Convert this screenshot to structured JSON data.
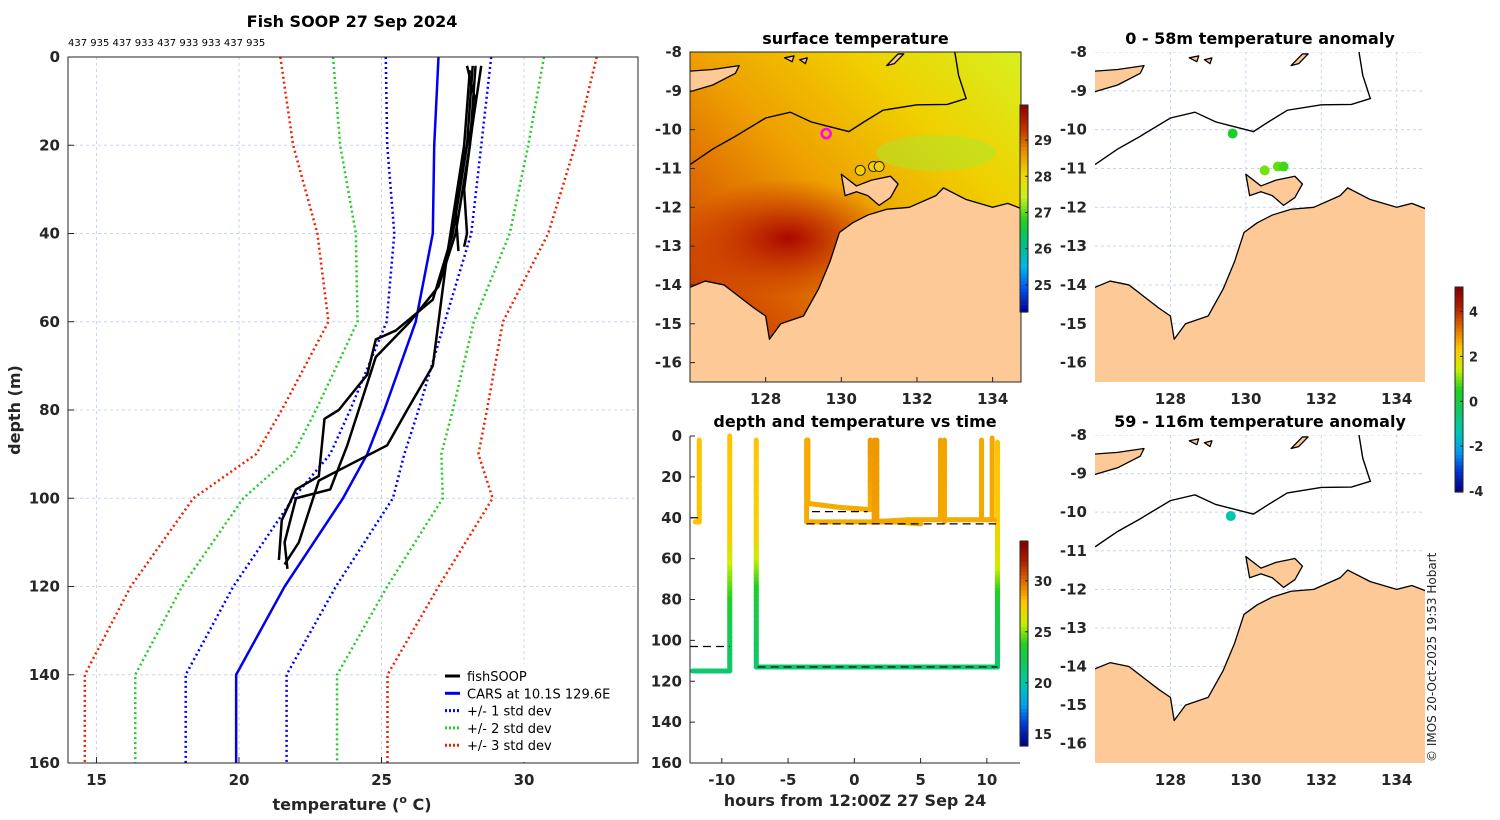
{
  "credit": "© IMOS 20-Oct-2025 19:53 Hobart",
  "chart_data": [
    {
      "type": "line",
      "title": "Fish SOOP 27 Sep 2024",
      "subtitle": "437 935 437 933 437 933 933 437 935",
      "xlabel_prefix": "temperature (",
      "xlabel_sup": "o",
      "xlabel_suffix": " C)",
      "ylabel": "depth (m)",
      "xlim": [
        14,
        34
      ],
      "ylim": [
        160,
        0
      ],
      "xticks": [
        "15",
        "20",
        "25",
        "30"
      ],
      "yticks": [
        "0",
        "20",
        "40",
        "60",
        "80",
        "100",
        "120",
        "140",
        "160"
      ],
      "grid": true,
      "legend_position": "bottom-right",
      "legend": [
        {
          "label": "fishSOOP",
          "color": "#000000",
          "style": "solid"
        },
        {
          "label": "CARS at 10.1S 129.6E",
          "color": "#0000ee",
          "style": "solid"
        },
        {
          "label": "+/- 1 std dev",
          "color": "#0000ff",
          "style": "dotted"
        },
        {
          "label": "+/- 2 std dev",
          "color": "#22cc22",
          "style": "dotted"
        },
        {
          "label": "+/- 3 std dev",
          "color": "#ee2200",
          "style": "dotted"
        }
      ],
      "cars": {
        "depth": [
          0,
          20,
          40,
          60,
          80,
          90,
          100,
          120,
          140,
          160
        ],
        "mean": [
          27.0,
          26.85,
          26.8,
          26.2,
          25.1,
          24.5,
          23.65,
          21.6,
          19.9,
          19.9
        ],
        "sd": [
          1.85,
          1.65,
          1.35,
          1.02,
          1.2,
          1.3,
          1.75,
          1.8,
          1.77,
          1.77
        ]
      },
      "fishsoop_profiles": [
        [
          [
            28.0,
            2
          ],
          [
            28.3,
            10
          ],
          [
            28.1,
            20
          ],
          [
            27.9,
            30
          ],
          [
            28.0,
            40
          ],
          [
            27.9,
            43
          ]
        ],
        [
          [
            28.5,
            2
          ],
          [
            28.2,
            15
          ],
          [
            27.8,
            25
          ],
          [
            27.6,
            35
          ],
          [
            27.7,
            44
          ]
        ],
        [
          [
            28.2,
            2
          ],
          [
            28.0,
            20
          ],
          [
            27.5,
            40
          ],
          [
            26.8,
            55
          ],
          [
            25.5,
            62
          ],
          [
            24.8,
            64
          ],
          [
            24.5,
            72
          ],
          [
            23.5,
            80
          ],
          [
            23.0,
            82
          ],
          [
            22.8,
            95
          ],
          [
            22.0,
            98
          ],
          [
            21.5,
            105
          ],
          [
            21.4,
            114
          ]
        ],
        [
          [
            28.3,
            2
          ],
          [
            28.1,
            20
          ],
          [
            27.6,
            40
          ],
          [
            27.0,
            52
          ],
          [
            26.0,
            60
          ],
          [
            24.8,
            68
          ],
          [
            24.3,
            78
          ],
          [
            23.8,
            88
          ],
          [
            23.2,
            98
          ],
          [
            22.0,
            100
          ],
          [
            21.6,
            110
          ],
          [
            21.7,
            116
          ]
        ],
        [
          [
            28.1,
            3
          ],
          [
            27.9,
            20
          ],
          [
            27.3,
            45
          ],
          [
            26.8,
            70
          ],
          [
            25.9,
            80
          ],
          [
            25.2,
            88
          ],
          [
            24.0,
            92
          ],
          [
            22.8,
            96
          ],
          [
            22.1,
            110
          ],
          [
            21.6,
            115
          ]
        ]
      ]
    },
    {
      "type": "heatmap",
      "title": "surface temperature",
      "xlim": [
        126.0,
        134.75
      ],
      "ylim": [
        -16.5,
        -8
      ],
      "xticks": [
        "128",
        "130",
        "132",
        "134"
      ],
      "yticks": [
        "-8",
        "-9",
        "-10",
        "-11",
        "-12",
        "-13",
        "-14",
        "-15",
        "-16"
      ],
      "ocean_colors": [
        "#b81800",
        "#d85a00",
        "#eea000",
        "#f0d000",
        "#d8f020"
      ],
      "colorbar": {
        "range": [
          24.25,
          29.97
        ],
        "ticks": [
          "25",
          "26",
          "27",
          "28",
          "29"
        ],
        "colors": [
          "#00008f",
          "#0050f0",
          "#00b8e8",
          "#00c080",
          "#20d020",
          "#c8f020",
          "#f0d800",
          "#e89000",
          "#c03000",
          "#900000"
        ]
      },
      "points": [
        {
          "lon": 129.6,
          "lat": -10.1,
          "color": "#ff00ff",
          "style": "ring"
        },
        {
          "lon": 130.5,
          "lat": -11.05,
          "color": "#f8d000",
          "style": "circle"
        },
        {
          "lon": 130.85,
          "lat": -10.95,
          "color": "#f8d000",
          "style": "circle"
        },
        {
          "lon": 131.0,
          "lat": -10.95,
          "color": "#f8d000",
          "style": "circle"
        }
      ]
    },
    {
      "type": "scatter",
      "title": "depth and temperature vs time",
      "xlabel": "hours from 12:00Z 27 Sep 24",
      "xlim": [
        -12.4,
        12.5
      ],
      "ylim": [
        160,
        0
      ],
      "xticks": [
        "-10",
        "-5",
        "0",
        "5",
        "10"
      ],
      "yticks": [
        "0",
        "20",
        "40",
        "60",
        "80",
        "100",
        "120",
        "140",
        "160"
      ],
      "colorbar": {
        "range": [
          13.8,
          33.9
        ],
        "ticks": [
          "15",
          "20",
          "25",
          "30"
        ],
        "colors": [
          "#00007f",
          "#0030d0",
          "#00a0f0",
          "#00c8b0",
          "#10c860",
          "#20d020",
          "#c8f000",
          "#ffc800",
          "#e07000",
          "#b02000",
          "#800000"
        ]
      },
      "tracks": [
        [
          [
            -12.0,
            42,
            28
          ],
          [
            -11.7,
            42,
            28
          ],
          [
            -11.7,
            2,
            28
          ]
        ],
        [
          [
            -12.2,
            115,
            21.5
          ],
          [
            -9.4,
            115,
            21.5
          ],
          [
            -9.4,
            90,
            22.5
          ],
          [
            -9.4,
            60,
            26
          ],
          [
            -9.4,
            50,
            27.5
          ],
          [
            -9.4,
            0,
            28
          ]
        ],
        [
          [
            -7.4,
            2,
            28
          ],
          [
            -7.4,
            50,
            27.5
          ],
          [
            -7.4,
            60,
            26
          ],
          [
            -7.4,
            80,
            23
          ],
          [
            -7.4,
            113,
            21.5
          ],
          [
            10.8,
            113,
            21.5
          ],
          [
            10.8,
            80,
            23
          ],
          [
            10.8,
            60,
            26.5
          ],
          [
            10.8,
            45,
            27.5
          ],
          [
            10.8,
            3,
            28
          ]
        ],
        [
          [
            -3.6,
            2,
            28.5
          ],
          [
            -3.6,
            42,
            28.5
          ],
          [
            1.3,
            42,
            28.5
          ],
          [
            4,
            41,
            28.5
          ],
          [
            10.6,
            41,
            28.5
          ]
        ],
        [
          [
            -3.5,
            2,
            28.5
          ],
          [
            -3.5,
            33,
            28.5
          ],
          [
            -1,
            35,
            28.5
          ],
          [
            1.2,
            36,
            28.5
          ],
          [
            1.2,
            2,
            29
          ]
        ],
        [
          [
            1.5,
            2,
            29
          ],
          [
            1.5,
            42,
            28.8
          ]
        ],
        [
          [
            1.7,
            2,
            29
          ],
          [
            1.7,
            42,
            28.8
          ],
          [
            3,
            42,
            28.6
          ],
          [
            5,
            43,
            28.5
          ]
        ],
        [
          [
            6.5,
            2,
            28.7
          ],
          [
            6.5,
            40,
            28.6
          ]
        ],
        [
          [
            6.8,
            2,
            28.7
          ],
          [
            6.8,
            42,
            28.6
          ]
        ],
        [
          [
            9.6,
            2,
            28.6
          ],
          [
            9.6,
            41,
            28.6
          ]
        ],
        [
          [
            10.4,
            1,
            28.6
          ],
          [
            10.4,
            41,
            28.6
          ]
        ]
      ],
      "bottom_depth_dashes": [
        [
          -12.4,
          -11.8,
          40
        ],
        [
          -12.4,
          -9.4,
          103
        ],
        [
          -7.3,
          10.8,
          113
        ],
        [
          -3.2,
          1.0,
          37
        ],
        [
          -3.6,
          10.7,
          43
        ]
      ]
    },
    {
      "type": "heatmap",
      "title": "0 - 58m temperature anomaly",
      "xlim": [
        126.0,
        134.75
      ],
      "ylim": [
        -16.5,
        -8
      ],
      "xticks": [
        "128",
        "130",
        "132",
        "134"
      ],
      "yticks": [
        "-8",
        "-9",
        "-10",
        "-11",
        "-12",
        "-13",
        "-14",
        "-15",
        "-16"
      ],
      "colorbar": {
        "range": [
          -4.05,
          5.1
        ],
        "ticks": [
          "4",
          "2",
          "0",
          "-2",
          "-4"
        ],
        "colors": [
          "#00007f",
          "#0030d0",
          "#00a0f0",
          "#00c8b0",
          "#10c860",
          "#20d020",
          "#c8f000",
          "#ffc800",
          "#e07000",
          "#b02000",
          "#800000"
        ]
      },
      "points": [
        {
          "lon": 129.65,
          "lat": -10.1,
          "anomaly": 0.3
        },
        {
          "lon": 130.5,
          "lat": -11.05,
          "anomaly": 1.0
        },
        {
          "lon": 130.85,
          "lat": -10.95,
          "anomaly": 0.9
        },
        {
          "lon": 131.0,
          "lat": -10.95,
          "anomaly": 0.7
        }
      ]
    },
    {
      "type": "heatmap",
      "title": "59 - 116m temperature anomaly",
      "xlim": [
        126.0,
        134.75
      ],
      "ylim": [
        -16.5,
        -8
      ],
      "xticks": [
        "128",
        "130",
        "132",
        "134"
      ],
      "yticks": [
        "-8",
        "-9",
        "-10",
        "-11",
        "-12",
        "-13",
        "-14",
        "-15",
        "-16"
      ],
      "points": [
        {
          "lon": 129.6,
          "lat": -10.1,
          "anomaly": -1.3
        }
      ]
    }
  ],
  "geography": {
    "land_color": "#fcc997",
    "mainland": [
      [
        125.9,
        -16.6
      ],
      [
        125.9,
        -14.1
      ],
      [
        126.4,
        -13.9
      ],
      [
        126.9,
        -14.0
      ],
      [
        127.3,
        -14.3
      ],
      [
        127.7,
        -14.6
      ],
      [
        128.0,
        -14.8
      ],
      [
        128.1,
        -15.4
      ],
      [
        128.4,
        -15.0
      ],
      [
        129.0,
        -14.8
      ],
      [
        129.4,
        -14.1
      ],
      [
        129.7,
        -13.4
      ],
      [
        129.95,
        -12.65
      ],
      [
        130.3,
        -12.4
      ],
      [
        130.7,
        -12.2
      ],
      [
        131.2,
        -12.05
      ],
      [
        131.8,
        -12.0
      ],
      [
        132.5,
        -11.7
      ],
      [
        132.7,
        -11.5
      ],
      [
        133.3,
        -11.8
      ],
      [
        134.0,
        -12.0
      ],
      [
        134.4,
        -11.9
      ],
      [
        134.8,
        -12.05
      ],
      [
        134.8,
        -16.6
      ]
    ],
    "islands": [
      [
        [
          130.0,
          -11.15
        ],
        [
          130.4,
          -11.45
        ],
        [
          130.8,
          -11.3
        ],
        [
          131.3,
          -11.2
        ],
        [
          131.5,
          -11.4
        ],
        [
          131.3,
          -11.75
        ],
        [
          131.0,
          -11.95
        ],
        [
          130.7,
          -11.7
        ],
        [
          130.4,
          -11.6
        ],
        [
          130.1,
          -11.7
        ]
      ],
      [
        [
          125.9,
          -8.5
        ],
        [
          126.6,
          -8.45
        ],
        [
          127.3,
          -8.35
        ],
        [
          127.2,
          -8.55
        ],
        [
          126.6,
          -8.85
        ],
        [
          125.9,
          -9.05
        ]
      ],
      [
        [
          131.2,
          -8.35
        ],
        [
          131.5,
          -8.05
        ],
        [
          131.65,
          -8.05
        ],
        [
          131.4,
          -8.3
        ]
      ],
      [
        [
          128.5,
          -8.15
        ],
        [
          128.75,
          -8.1
        ],
        [
          128.7,
          -8.25
        ]
      ],
      [
        [
          128.9,
          -8.2
        ],
        [
          129.1,
          -8.15
        ],
        [
          129.05,
          -8.3
        ]
      ]
    ],
    "isobath": [
      [
        126.0,
        -10.9
      ],
      [
        126.6,
        -10.5
      ],
      [
        127.15,
        -10.2
      ],
      [
        128.0,
        -9.7
      ],
      [
        128.65,
        -9.55
      ],
      [
        129.2,
        -9.8
      ],
      [
        129.6,
        -9.9
      ],
      [
        130.2,
        -10.05
      ],
      [
        130.6,
        -9.8
      ],
      [
        131.1,
        -9.5
      ],
      [
        132.0,
        -9.36
      ],
      [
        132.8,
        -9.35
      ],
      [
        133.3,
        -9.2
      ],
      [
        133.1,
        -8.6
      ],
      [
        133.0,
        -8.0
      ]
    ]
  }
}
